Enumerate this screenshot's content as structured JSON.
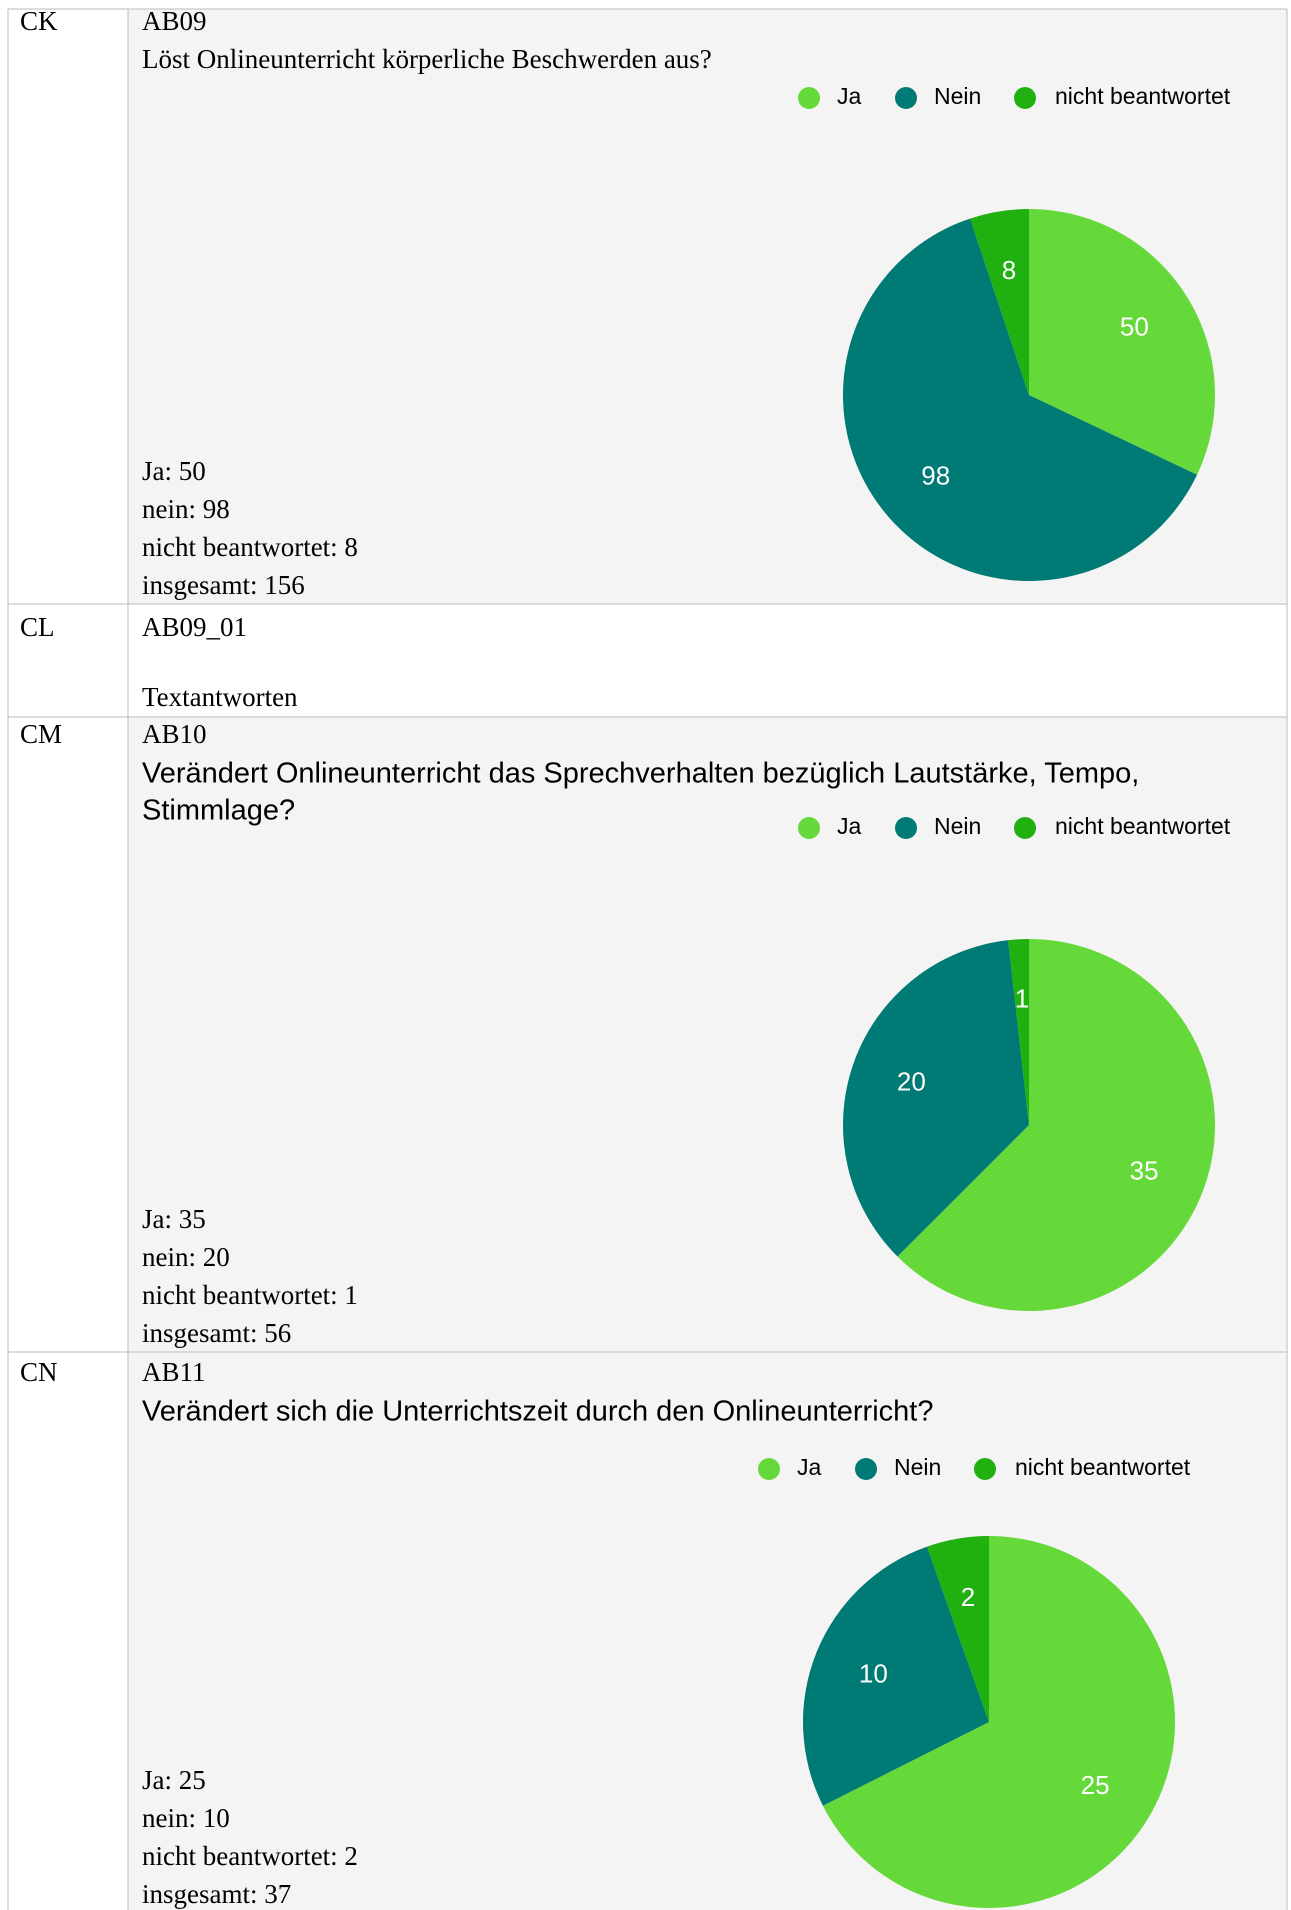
{
  "rows": [
    {
      "id": "CK",
      "code": "AB09",
      "question": [
        "Löst Onlineunterricht körperliche Beschwerden aus?"
      ],
      "chart": {
        "type": "pie",
        "categories": [
          "Ja",
          "Nein",
          "nicht beantwortet"
        ],
        "colors": [
          "#66d93a",
          "#007a74",
          "#20b010"
        ],
        "values": [
          50,
          98,
          8
        ]
      },
      "stats": [
        "Ja: 50",
        "nein: 98",
        "nicht beantwortet: 8",
        "insgesamt: 156"
      ]
    },
    {
      "id": "CL",
      "code": "AB09_01",
      "note": "Textantworten"
    },
    {
      "id": "CM",
      "code": "AB10",
      "question": [
        "Verändert Onlineunterricht das Sprechverhalten bezüglich Lautstärke, Tempo,",
        "Stimmlage?"
      ],
      "chart": {
        "type": "pie",
        "categories": [
          "Ja",
          "Nein",
          "nicht beantwortet"
        ],
        "colors": [
          "#66d93a",
          "#007a74",
          "#20b010"
        ],
        "values": [
          35,
          20,
          1
        ]
      },
      "stats": [
        "Ja: 35",
        "nein: 20",
        "nicht beantwortet: 1",
        "insgesamt: 56"
      ]
    },
    {
      "id": "CN",
      "code": "AB11",
      "question": [
        "Verändert sich die Unterrichtszeit durch den Onlineunterricht?"
      ],
      "chart": {
        "type": "pie",
        "categories": [
          "Ja",
          "Nein",
          "nicht beantwortet"
        ],
        "colors": [
          "#66d93a",
          "#007a74",
          "#20b010"
        ],
        "values": [
          25,
          10,
          2
        ]
      },
      "stats": [
        "Ja: 25",
        "nein: 10",
        "nicht beantwortet: 2",
        "insgesamt: 37"
      ]
    }
  ]
}
